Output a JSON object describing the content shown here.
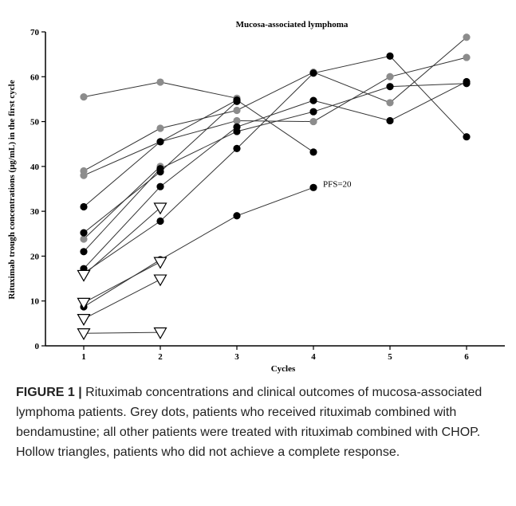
{
  "chart_data": {
    "type": "line",
    "title": "Mucosa-associated lymphoma",
    "xlabel": "Cycles",
    "ylabel": "Rituximab trough concentrations (μg/mL) in the first cycle",
    "x_ticks": [
      1,
      2,
      3,
      4,
      5,
      6
    ],
    "y_ticks": [
      0,
      10,
      20,
      30,
      40,
      50,
      60,
      70
    ],
    "xlim": [
      0.5,
      6.5
    ],
    "ylim": [
      0,
      70
    ],
    "grid": false,
    "series": [
      {
        "group": "grey",
        "x": [
          1,
          2,
          3
        ],
        "values": [
          55.5,
          58.8,
          55.2
        ]
      },
      {
        "group": "grey",
        "x": [
          1,
          2,
          3,
          4,
          5,
          6
        ],
        "values": [
          39.0,
          48.5,
          52.5,
          61.0,
          54.2,
          68.8
        ]
      },
      {
        "group": "grey",
        "x": [
          1,
          2,
          3,
          4,
          5,
          6
        ],
        "values": [
          38.0,
          45.5,
          50.2,
          50.0,
          60.0,
          64.3
        ]
      },
      {
        "group": "grey",
        "x": [
          1,
          2
        ],
        "values": [
          23.8,
          40.0
        ]
      },
      {
        "group": "black",
        "x": [
          1,
          2,
          3,
          4
        ],
        "values": [
          31.0,
          45.5,
          54.8,
          43.2
        ]
      },
      {
        "group": "black",
        "x": [
          1,
          2,
          3
        ],
        "values": [
          25.2,
          38.8,
          54.5
        ]
      },
      {
        "group": "black",
        "x": [
          1,
          2,
          3,
          4,
          5,
          6
        ],
        "values": [
          21.0,
          39.5,
          47.8,
          52.2,
          57.8,
          58.5
        ]
      },
      {
        "group": "black",
        "x": [
          1,
          2,
          3,
          4,
          5,
          6
        ],
        "values": [
          17.2,
          35.5,
          48.8,
          54.7,
          50.2,
          58.9
        ]
      },
      {
        "group": "black",
        "x": [
          1,
          2,
          3,
          4,
          5,
          6
        ],
        "values": [
          16.2,
          27.8,
          44.0,
          60.8,
          64.6,
          46.6
        ]
      },
      {
        "group": "black",
        "x": [
          1,
          2,
          3,
          4
        ],
        "values": [
          8.7,
          19.2,
          29.0,
          35.3
        ]
      },
      {
        "group": "hollow",
        "x": [
          1,
          2
        ],
        "values": [
          15.8,
          30.8
        ]
      },
      {
        "group": "hollow",
        "x": [
          1,
          2
        ],
        "values": [
          9.6,
          18.7
        ]
      },
      {
        "group": "hollow",
        "x": [
          1,
          2
        ],
        "values": [
          6.0,
          14.8
        ]
      },
      {
        "group": "hollow",
        "x": [
          1,
          2
        ],
        "values": [
          2.8,
          3.0
        ]
      }
    ],
    "annotations": [
      {
        "text": "PFS=20",
        "x": 4,
        "y": 35.3
      }
    ],
    "colors": {
      "grey_marker": "#8c8c8c",
      "black_marker": "#000000",
      "line": "#333333",
      "hollow_marker_stroke": "#000000"
    }
  },
  "caption": {
    "label": "FIGURE 1 |",
    "text": " Rituximab concentrations and clinical outcomes of mucosa-associated lymphoma patients. Grey dots, patients who received rituximab combined with bendamustine; all other patients were treated with rituximab combined with CHOP. Hollow triangles, patients who did not achieve a complete response."
  }
}
